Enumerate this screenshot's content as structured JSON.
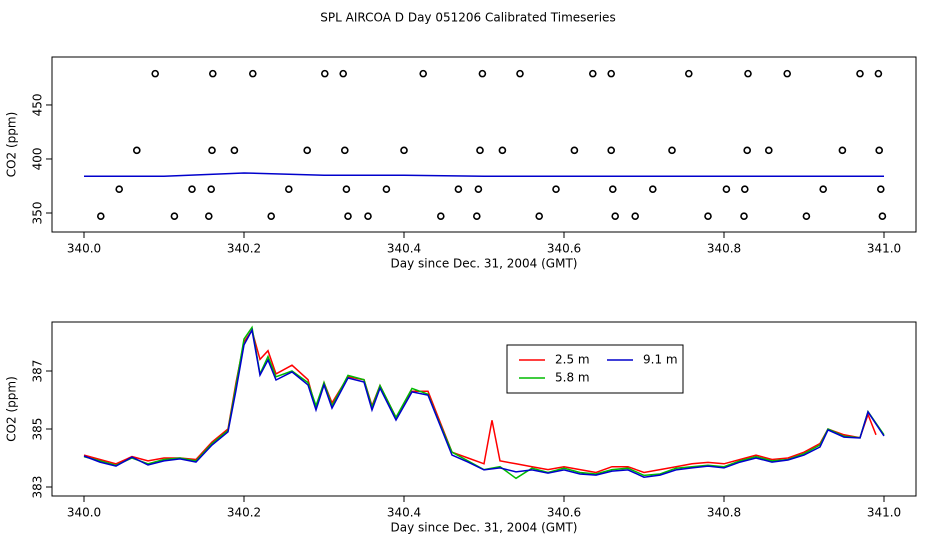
{
  "title": "SPL AIRCOA D  Day 051206  Calibrated Timeseries",
  "chart_data": [
    {
      "type": "scatter",
      "xlabel": "Day since Dec. 31, 2004 (GMT)",
      "ylabel": "CO2 (ppm)",
      "xlim": [
        339.96,
        341.04
      ],
      "ylim": [
        332.4,
        494.4
      ],
      "xticks": [
        {
          "value": 340,
          "label": "340.0"
        },
        340.2,
        340.4,
        340.6,
        340.8,
        {
          "value": 341,
          "label": "341.0"
        }
      ],
      "yticks": [
        350,
        400,
        450
      ],
      "series": [
        {
          "mode": "markers",
          "color": "#000000",
          "x": [
            340.089,
            340.161,
            340.211,
            340.301,
            340.324,
            340.424,
            340.498,
            340.545,
            340.636,
            340.659,
            340.756,
            340.83,
            340.879,
            340.97,
            340.993,
            340.066,
            340.16,
            340.188,
            340.279,
            340.326,
            340.4,
            340.495,
            340.523,
            340.613,
            340.659,
            340.735,
            340.829,
            340.856,
            340.948,
            340.994,
            340.044,
            340.135,
            340.159,
            340.256,
            340.328,
            340.378,
            340.468,
            340.493,
            340.59,
            340.661,
            340.711,
            340.803,
            340.826,
            340.924,
            340.996,
            340.021,
            340.113,
            340.156,
            340.234,
            340.33,
            340.355,
            340.446,
            340.491,
            340.569,
            340.664,
            340.689,
            340.78,
            340.825,
            340.903,
            340.998
          ],
          "values": [
            479,
            479,
            479,
            479,
            479,
            479,
            479,
            479,
            479,
            479,
            479,
            479,
            479,
            479,
            479,
            408,
            408,
            408,
            408,
            408,
            408,
            408,
            408,
            408,
            408,
            408,
            408,
            408,
            408,
            408,
            372,
            372,
            372,
            372,
            372,
            372,
            372,
            372,
            372,
            372,
            372,
            372,
            372,
            372,
            372,
            347,
            347,
            347,
            347,
            347,
            347,
            347,
            347,
            347,
            347,
            347,
            347,
            347,
            347,
            347
          ]
        },
        {
          "mode": "line",
          "color": "#0000cc",
          "x": [
            340.0,
            340.1,
            340.2,
            340.3,
            340.4,
            340.5,
            340.6,
            340.7,
            340.8,
            340.9,
            341.0
          ],
          "values": [
            384,
            384,
            387,
            385,
            385,
            384,
            384,
            384,
            384,
            384,
            384
          ]
        }
      ]
    },
    {
      "type": "line",
      "xlabel": "Day since Dec. 31, 2004 (GMT)",
      "ylabel": "CO2 (ppm)",
      "xlim": [
        339.96,
        341.04
      ],
      "ylim": [
        382.69,
        388.69
      ],
      "xticks": [
        {
          "value": 340,
          "label": "340.0"
        },
        340.2,
        340.4,
        340.6,
        340.8,
        {
          "value": 341,
          "label": "341.0"
        }
      ],
      "yticks": [
        383,
        385,
        387
      ],
      "legend": "top",
      "series": [
        {
          "name": "2.5 m",
          "color": "#ff0000",
          "x": [
            340.0,
            340.02,
            340.04,
            340.06,
            340.08,
            340.1,
            340.12,
            340.14,
            340.16,
            340.18,
            340.19,
            340.2,
            340.21,
            340.22,
            340.23,
            340.24,
            340.26,
            340.28,
            340.29,
            340.3,
            340.31,
            340.33,
            340.35,
            340.36,
            340.37,
            340.39,
            340.41,
            340.43,
            340.44,
            340.46,
            340.48,
            340.5,
            340.51,
            340.52,
            340.54,
            340.56,
            340.58,
            340.6,
            340.62,
            340.64,
            340.66,
            340.68,
            340.7,
            340.72,
            340.74,
            340.76,
            340.78,
            340.8,
            340.82,
            340.84,
            340.86,
            340.88,
            340.9,
            340.92,
            340.93,
            340.95,
            340.97,
            340.98,
            340.99
          ],
          "values": [
            384.1,
            383.95,
            383.8,
            384.05,
            383.9,
            384.0,
            384.0,
            383.95,
            384.55,
            385.0,
            386.6,
            388.0,
            388.4,
            387.4,
            387.7,
            386.9,
            387.2,
            386.7,
            385.7,
            386.6,
            385.9,
            386.8,
            386.7,
            385.8,
            386.5,
            385.4,
            386.3,
            386.3,
            385.6,
            384.2,
            384.0,
            383.8,
            385.3,
            383.9,
            383.8,
            383.7,
            383.6,
            383.7,
            383.6,
            383.5,
            383.7,
            383.7,
            383.5,
            383.6,
            383.7,
            383.8,
            383.85,
            383.8,
            383.95,
            384.1,
            383.95,
            384.0,
            384.2,
            384.5,
            385.0,
            384.8,
            384.7,
            385.5,
            384.8
          ]
        },
        {
          "name": "5.8 m",
          "color": "#00bb00",
          "x": [
            340.0,
            340.02,
            340.04,
            340.06,
            340.08,
            340.1,
            340.12,
            340.14,
            340.16,
            340.18,
            340.19,
            340.2,
            340.21,
            340.22,
            340.23,
            340.24,
            340.26,
            340.28,
            340.29,
            340.3,
            340.31,
            340.33,
            340.35,
            340.36,
            340.37,
            340.39,
            340.41,
            340.43,
            340.44,
            340.46,
            340.48,
            340.5,
            340.52,
            340.54,
            340.56,
            340.58,
            340.6,
            340.62,
            340.64,
            340.66,
            340.68,
            340.7,
            340.72,
            340.74,
            340.76,
            340.78,
            340.8,
            340.82,
            340.84,
            340.86,
            340.88,
            340.9,
            340.92,
            340.93,
            340.95,
            340.97,
            340.98,
            341.0
          ],
          "values": [
            384.05,
            383.9,
            383.75,
            384.0,
            383.8,
            383.95,
            384.0,
            383.9,
            384.5,
            384.95,
            386.5,
            388.1,
            388.5,
            386.9,
            387.5,
            386.8,
            387.0,
            386.6,
            385.8,
            386.6,
            385.8,
            386.85,
            386.7,
            385.75,
            386.5,
            385.4,
            386.4,
            386.2,
            385.5,
            384.2,
            383.9,
            383.6,
            383.7,
            383.3,
            383.65,
            383.5,
            383.65,
            383.5,
            383.45,
            383.6,
            383.65,
            383.4,
            383.45,
            383.65,
            383.7,
            383.75,
            383.7,
            383.9,
            384.05,
            383.9,
            383.95,
            384.15,
            384.45,
            385.0,
            384.75,
            384.7,
            385.6,
            384.8
          ]
        },
        {
          "name": "9.1 m",
          "color": "#0000cc",
          "x": [
            340.0,
            340.02,
            340.04,
            340.06,
            340.08,
            340.1,
            340.12,
            340.14,
            340.16,
            340.18,
            340.19,
            340.2,
            340.21,
            340.22,
            340.23,
            340.24,
            340.26,
            340.28,
            340.29,
            340.3,
            340.31,
            340.33,
            340.35,
            340.36,
            340.37,
            340.39,
            340.41,
            340.43,
            340.44,
            340.46,
            340.48,
            340.5,
            340.52,
            340.54,
            340.56,
            340.58,
            340.6,
            340.62,
            340.64,
            340.66,
            340.68,
            340.7,
            340.72,
            340.74,
            340.76,
            340.78,
            340.8,
            340.82,
            340.84,
            340.86,
            340.88,
            340.9,
            340.92,
            340.93,
            340.95,
            340.97,
            340.98,
            341.0
          ],
          "values": [
            384.07,
            383.86,
            383.72,
            384.03,
            383.76,
            383.9,
            383.97,
            383.86,
            384.45,
            384.9,
            386.34,
            387.9,
            388.41,
            386.86,
            387.38,
            386.69,
            386.97,
            386.52,
            385.66,
            386.52,
            385.72,
            386.76,
            386.62,
            385.66,
            386.41,
            385.31,
            386.28,
            386.17,
            385.48,
            384.1,
            383.86,
            383.59,
            383.66,
            383.52,
            383.59,
            383.48,
            383.59,
            383.45,
            383.41,
            383.55,
            383.59,
            383.34,
            383.41,
            383.59,
            383.66,
            383.72,
            383.66,
            383.86,
            384.0,
            383.86,
            383.93,
            384.1,
            384.38,
            384.97,
            384.72,
            384.69,
            385.59,
            384.76
          ]
        }
      ]
    }
  ]
}
